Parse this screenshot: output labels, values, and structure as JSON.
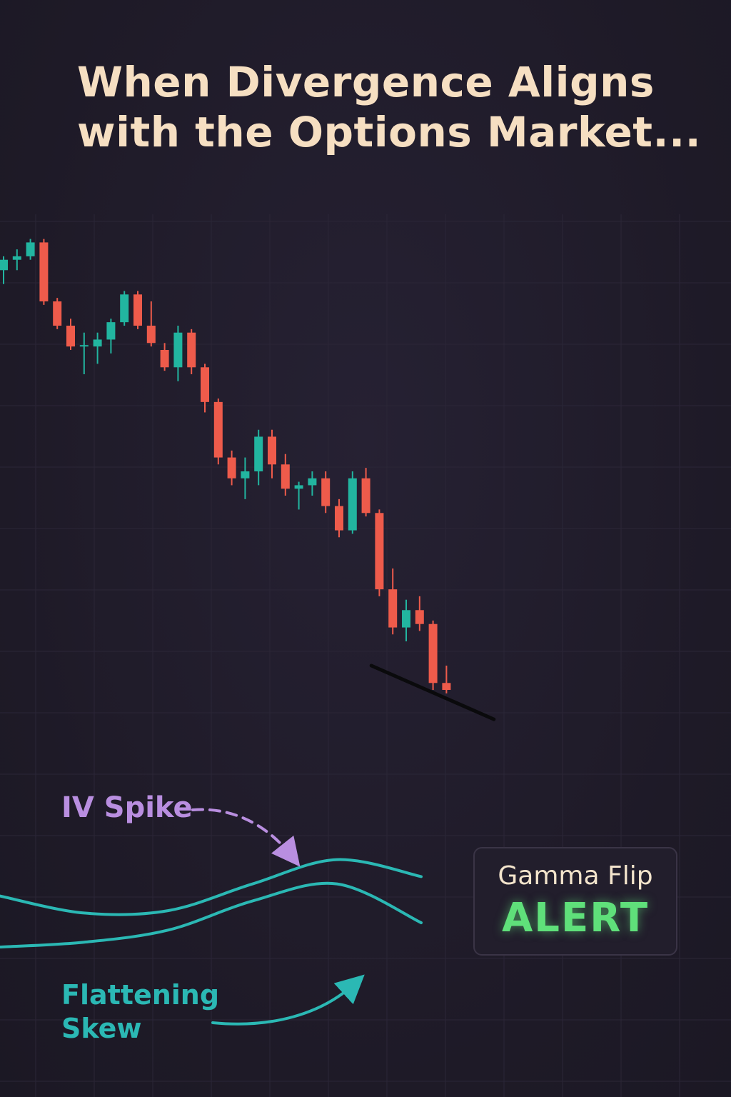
{
  "title": {
    "line1": "When Divergence Aligns",
    "line2": "with the Options Market..."
  },
  "annotations": {
    "iv_spike": "IV Spike",
    "skew_line1": "Flattening",
    "skew_line2": "Skew"
  },
  "alert_box": {
    "title": "Gamma Flip",
    "status": "ALERT"
  },
  "colors": {
    "up": "#22b5a0",
    "down": "#ee5b4b",
    "iv_spike": "#b98ee0",
    "skew": "#2bb8b4",
    "alert": "#5fe07a",
    "title": "#f6dfc2"
  },
  "chart_data": [
    {
      "type": "candlestick",
      "title": "",
      "xlabel": "",
      "ylabel": "",
      "grid": true,
      "ylim": [
        0,
        100
      ],
      "candles": [
        {
          "o": 79,
          "h": 81,
          "l": 77,
          "c": 80.5
        },
        {
          "o": 80.5,
          "h": 82,
          "l": 79,
          "c": 81
        },
        {
          "o": 81,
          "h": 83.5,
          "l": 80.5,
          "c": 83
        },
        {
          "o": 83,
          "h": 83.5,
          "l": 74,
          "c": 74.5
        },
        {
          "o": 74.5,
          "h": 75,
          "l": 70.5,
          "c": 71
        },
        {
          "o": 71,
          "h": 72,
          "l": 67.5,
          "c": 68
        },
        {
          "o": 68,
          "h": 70,
          "l": 64,
          "c": 68.2
        },
        {
          "o": 68,
          "h": 70,
          "l": 65.5,
          "c": 69
        },
        {
          "o": 69,
          "h": 72,
          "l": 67,
          "c": 71.5
        },
        {
          "o": 71.5,
          "h": 76,
          "l": 71,
          "c": 75.5
        },
        {
          "o": 75.5,
          "h": 76,
          "l": 70.5,
          "c": 71
        },
        {
          "o": 71,
          "h": 74.5,
          "l": 68,
          "c": 68.5
        },
        {
          "o": 67.5,
          "h": 68.5,
          "l": 64.5,
          "c": 65
        },
        {
          "o": 65,
          "h": 71,
          "l": 63,
          "c": 70
        },
        {
          "o": 70,
          "h": 70.5,
          "l": 64,
          "c": 65
        },
        {
          "o": 65,
          "h": 65.5,
          "l": 58.5,
          "c": 60
        },
        {
          "o": 60,
          "h": 60.5,
          "l": 51,
          "c": 52
        },
        {
          "o": 52,
          "h": 53,
          "l": 48,
          "c": 49
        },
        {
          "o": 49,
          "h": 52,
          "l": 46,
          "c": 50
        },
        {
          "o": 50,
          "h": 56,
          "l": 48,
          "c": 55
        },
        {
          "o": 55,
          "h": 56,
          "l": 49,
          "c": 51
        },
        {
          "o": 51,
          "h": 52.5,
          "l": 46.5,
          "c": 47.5
        },
        {
          "o": 47.5,
          "h": 48.5,
          "l": 44.5,
          "c": 48
        },
        {
          "o": 48,
          "h": 50,
          "l": 46.5,
          "c": 49
        },
        {
          "o": 49,
          "h": 50,
          "l": 44,
          "c": 45
        },
        {
          "o": 45,
          "h": 46,
          "l": 40.5,
          "c": 41.5
        },
        {
          "o": 41.5,
          "h": 50,
          "l": 41,
          "c": 49
        },
        {
          "o": 49,
          "h": 50.5,
          "l": 43.5,
          "c": 44
        },
        {
          "o": 44,
          "h": 44.5,
          "l": 32,
          "c": 33
        },
        {
          "o": 33,
          "h": 36,
          "l": 26.5,
          "c": 27.5
        },
        {
          "o": 27.5,
          "h": 31.5,
          "l": 25.5,
          "c": 30
        },
        {
          "o": 30,
          "h": 32,
          "l": 27,
          "c": 28
        },
        {
          "o": 28,
          "h": 28.5,
          "l": 18.5,
          "c": 19.5
        },
        {
          "o": 19.5,
          "h": 22,
          "l": 18,
          "c": 18.5
        }
      ],
      "trendline": {
        "from": {
          "index": 29,
          "value": 22
        },
        "to": {
          "index": 36,
          "value": 15.5
        }
      }
    },
    {
      "type": "line",
      "series": [
        {
          "name": "IV Spike",
          "role": "iv",
          "x": [
            0,
            20,
            40,
            60,
            80,
            100
          ],
          "values": [
            62,
            48,
            50,
            72,
            92,
            78
          ]
        },
        {
          "name": "Flattening Skew",
          "role": "skew",
          "x": [
            0,
            20,
            40,
            60,
            80,
            100
          ],
          "values": [
            20,
            24,
            34,
            58,
            72,
            40
          ]
        }
      ]
    }
  ]
}
